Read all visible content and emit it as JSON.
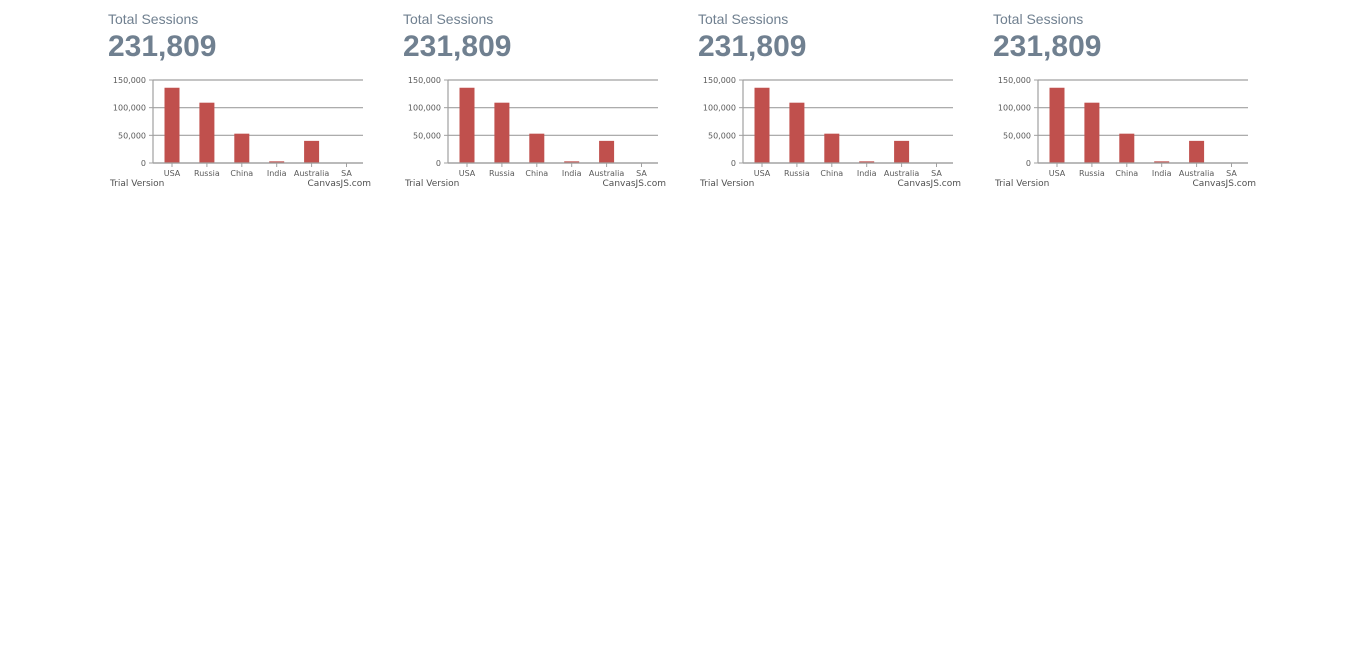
{
  "panels": [
    {
      "title": "Total Sessions",
      "value": "231,809"
    },
    {
      "title": "Total Sessions",
      "value": "231,809"
    },
    {
      "title": "Total Sessions",
      "value": "231,809"
    },
    {
      "title": "Total Sessions",
      "value": "231,809"
    }
  ],
  "colors": {
    "bar": "#c0504d",
    "text": "#708090",
    "axis": "#a0a0a0",
    "grid": "#a0a0a0",
    "tick_label": "#5a5a5a"
  },
  "watermark": {
    "trial": "Trial Version",
    "brand": "CanvasJS.com"
  },
  "chart_data": [
    {
      "type": "bar",
      "categories": [
        "USA",
        "Russia",
        "China",
        "India",
        "Australia",
        "SA"
      ],
      "values": [
        136000,
        109000,
        53000,
        3000,
        40000,
        0
      ],
      "yticks": [
        "0",
        "50,000",
        "100,000",
        "150,000"
      ],
      "ylim": [
        0,
        150000
      ],
      "grid": true
    },
    {
      "type": "bar",
      "categories": [
        "USA",
        "Russia",
        "China",
        "India",
        "Australia",
        "SA"
      ],
      "values": [
        136000,
        109000,
        53000,
        3000,
        40000,
        0
      ],
      "yticks": [
        "0",
        "50,000",
        "100,000",
        "150,000"
      ],
      "ylim": [
        0,
        150000
      ],
      "grid": true
    },
    {
      "type": "bar",
      "categories": [
        "USA",
        "Russia",
        "China",
        "India",
        "Australia",
        "SA"
      ],
      "values": [
        136000,
        109000,
        53000,
        3000,
        40000,
        0
      ],
      "yticks": [
        "0",
        "50,000",
        "100,000",
        "150,000"
      ],
      "ylim": [
        0,
        150000
      ],
      "grid": true
    },
    {
      "type": "bar",
      "categories": [
        "USA",
        "Russia",
        "China",
        "India",
        "Australia",
        "SA"
      ],
      "values": [
        136000,
        109000,
        53000,
        3000,
        40000,
        0
      ],
      "yticks": [
        "0",
        "50,000",
        "100,000",
        "150,000"
      ],
      "ylim": [
        0,
        150000
      ],
      "grid": true
    }
  ]
}
